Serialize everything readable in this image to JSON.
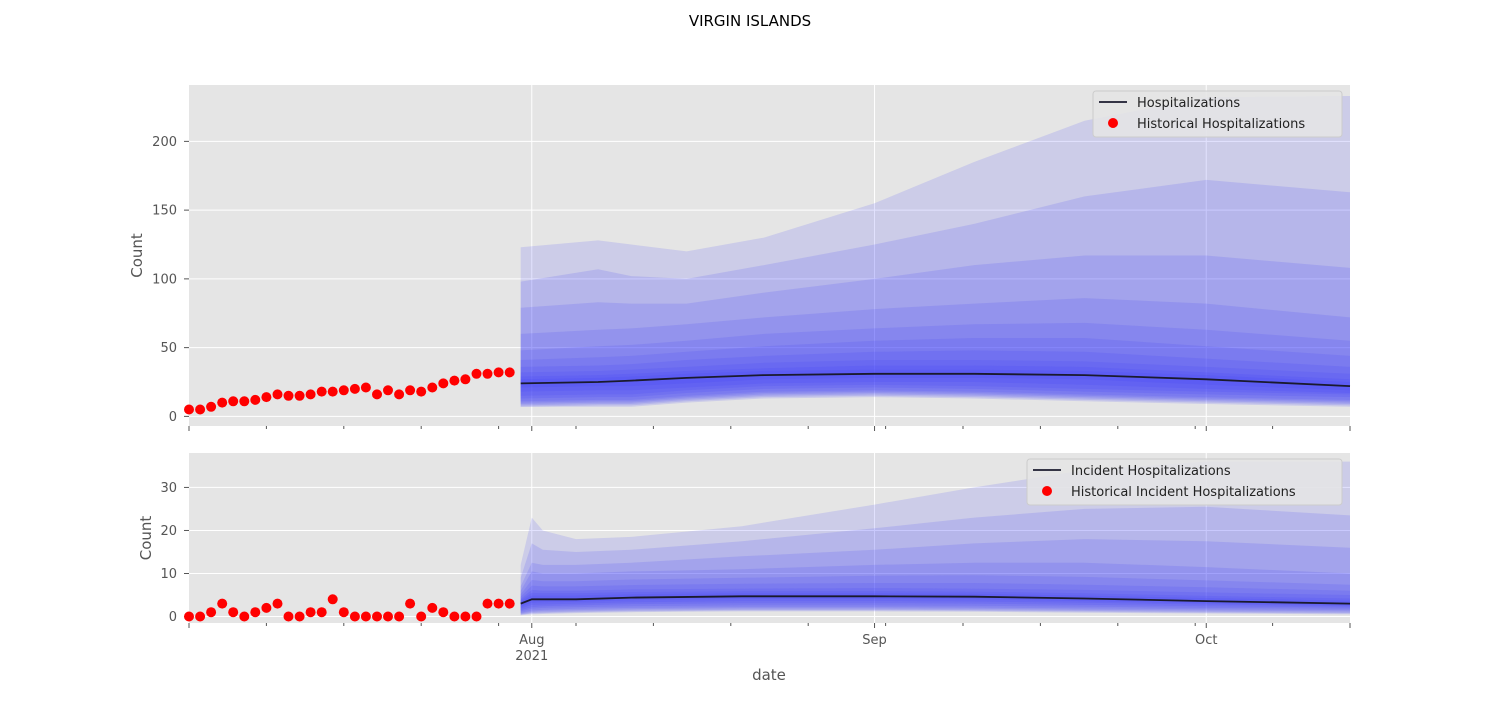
{
  "figure": {
    "title": "VIRGIN ISLANDS",
    "xlabel": "date"
  },
  "colors": {
    "panel_bg": "#e5e5e5",
    "grid": "#ffffff",
    "band": "#3c3cf5",
    "median": "#1a1a2e",
    "historical": "#ff0000",
    "text": "#555555"
  },
  "chart_data": [
    {
      "type": "line",
      "ylabel": "Count",
      "xlim": [
        "2021-07-01",
        "2021-10-14"
      ],
      "ylim": [
        -7,
        241
      ],
      "yticks": [
        0,
        50,
        100,
        150,
        200
      ],
      "xticks": [
        {
          "date": "2021-08-01",
          "label": "Aug",
          "sublabel": "2021"
        },
        {
          "date": "2021-09-01",
          "label": "Sep",
          "sublabel": ""
        },
        {
          "date": "2021-10-01",
          "label": "Oct",
          "sublabel": ""
        }
      ],
      "legend": {
        "placement": "upper right",
        "entries": [
          "Hospitalizations",
          "Historical Hospitalizations"
        ]
      },
      "historical": {
        "name": "Historical Hospitalizations",
        "start": "2021-07-01",
        "values": [
          5,
          5,
          7,
          10,
          11,
          11,
          12,
          14,
          16,
          15,
          15,
          16,
          18,
          18,
          19,
          20,
          21,
          16,
          19,
          16,
          19,
          18,
          21,
          24,
          26,
          27,
          31,
          31,
          32,
          32
        ]
      },
      "forecast": {
        "name": "Hospitalizations",
        "knot_dates": [
          "2021-07-31",
          "2021-08-07",
          "2021-08-10",
          "2021-08-15",
          "2021-08-22",
          "2021-09-01",
          "2021-09-10",
          "2021-09-20",
          "2021-10-01",
          "2021-10-14"
        ],
        "median": [
          24,
          25,
          26,
          28,
          30,
          31,
          31,
          30,
          27,
          22
        ],
        "bands": [
          {
            "lower": [
              7,
              7,
              7,
              10,
              13,
              14,
              13,
              11,
              9,
              7
            ],
            "upper": [
              123,
              128,
              125,
              120,
              130,
              155,
              185,
              215,
              232,
              233
            ]
          },
          {
            "lower": [
              7,
              8,
              8,
              11,
              14,
              15,
              14,
              12,
              10,
              8
            ],
            "upper": [
              98,
              107,
              102,
              100,
              110,
              125,
              140,
              160,
              172,
              163
            ]
          },
          {
            "lower": [
              8,
              9,
              9,
              12,
              15,
              16,
              15,
              13,
              11,
              9
            ],
            "upper": [
              79,
              83,
              82,
              82,
              90,
              100,
              110,
              117,
              117,
              108
            ]
          },
          {
            "lower": [
              9,
              10,
              10,
              13,
              16,
              17,
              16,
              14,
              12,
              10
            ],
            "upper": [
              60,
              63,
              64,
              67,
              72,
              78,
              82,
              86,
              82,
              72
            ]
          },
          {
            "lower": [
              10,
              11,
              11,
              14,
              17,
              18,
              17,
              15,
              13,
              11
            ],
            "upper": [
              48,
              51,
              52,
              55,
              60,
              64,
              67,
              68,
              63,
              55
            ]
          },
          {
            "lower": [
              11,
              12,
              12,
              15,
              18,
              19,
              18,
              16,
              14,
              12
            ],
            "upper": [
              41,
              43,
              44,
              47,
              51,
              55,
              57,
              57,
              51,
              44
            ]
          },
          {
            "lower": [
              13,
              14,
              14,
              17,
              20,
              21,
              20,
              18,
              16,
              14
            ],
            "upper": [
              36,
              37,
              38,
              41,
              44,
              47,
              48,
              47,
              42,
              36
            ]
          },
          {
            "lower": [
              15,
              16,
              16,
              19,
              22,
              23,
              22,
              20,
              18,
              16
            ],
            "upper": [
              32,
              33,
              34,
              36,
              39,
              41,
              41,
              40,
              36,
              31
            ]
          },
          {
            "lower": [
              18,
              19,
              19,
              21,
              24,
              25,
              25,
              23,
              20,
              17
            ],
            "upper": [
              29,
              30,
              31,
              33,
              35,
              37,
              37,
              36,
              32,
              27
            ]
          },
          {
            "lower": [
              21,
              22,
              22,
              24,
              27,
              28,
              28,
              27,
              23,
              19
            ],
            "upper": [
              27,
              28,
              29,
              31,
              33,
              34,
              34,
              33,
              30,
              25
            ]
          }
        ]
      }
    },
    {
      "type": "line",
      "ylabel": "Count",
      "xlim": [
        "2021-07-01",
        "2021-10-14"
      ],
      "ylim": [
        -1.5,
        38
      ],
      "yticks": [
        0,
        10,
        20,
        30
      ],
      "xticks": [
        {
          "date": "2021-08-01",
          "label": "Aug",
          "sublabel": "2021"
        },
        {
          "date": "2021-09-01",
          "label": "Sep",
          "sublabel": ""
        },
        {
          "date": "2021-10-01",
          "label": "Oct",
          "sublabel": ""
        }
      ],
      "legend": {
        "placement": "upper right",
        "entries": [
          "Incident Hospitalizations",
          "Historical Incident Hospitalizations"
        ]
      },
      "historical": {
        "name": "Historical Incident Hospitalizations",
        "start": "2021-07-01",
        "values": [
          0,
          0,
          1,
          3,
          1,
          0,
          1,
          2,
          3,
          0,
          0,
          1,
          1,
          4,
          1,
          0,
          0,
          0,
          0,
          0,
          3,
          0,
          2,
          1,
          0,
          0,
          0,
          3,
          3,
          3
        ]
      },
      "forecast": {
        "name": "Incident Hospitalizations",
        "knot_dates": [
          "2021-07-31",
          "2021-08-01",
          "2021-08-02",
          "2021-08-05",
          "2021-08-10",
          "2021-08-20",
          "2021-09-01",
          "2021-09-10",
          "2021-09-20",
          "2021-10-01",
          "2021-10-14"
        ],
        "median": [
          3,
          4,
          4,
          4,
          4.4,
          4.7,
          4.7,
          4.6,
          4.2,
          3.6,
          3
        ],
        "bands": [
          {
            "lower": [
              0.3,
              0.5,
              0.6,
              0.8,
              1.0,
              1.2,
              1.2,
              1.1,
              0.9,
              0.7,
              0.5
            ],
            "upper": [
              12,
              23,
              20,
              18,
              18.5,
              21,
              26,
              30,
              34,
              36,
              36
            ]
          },
          {
            "lower": [
              0.4,
              0.7,
              0.8,
              1.0,
              1.2,
              1.4,
              1.4,
              1.3,
              1.1,
              0.9,
              0.7
            ],
            "upper": [
              9,
              17,
              15.5,
              15,
              15.5,
              17.5,
              20.5,
              23,
              25,
              25.5,
              23.5
            ]
          },
          {
            "lower": [
              0.5,
              0.9,
              1.0,
              1.2,
              1.4,
              1.6,
              1.6,
              1.5,
              1.3,
              1.1,
              0.9
            ],
            "upper": [
              7,
              12.5,
              12,
              12,
              12.5,
              14,
              15.5,
              17,
              18,
              17.5,
              16
            ]
          },
          {
            "lower": [
              0.7,
              1.1,
              1.3,
              1.5,
              1.7,
              1.9,
              1.9,
              1.8,
              1.6,
              1.4,
              1.2
            ],
            "upper": [
              6,
              10.5,
              10,
              10,
              10.5,
              11,
              12,
              12.5,
              12.5,
              11.5,
              10
            ]
          },
          {
            "lower": [
              0.9,
              1.4,
              1.6,
              1.8,
              2.0,
              2.2,
              2.2,
              2.1,
              1.9,
              1.7,
              1.5
            ],
            "upper": [
              5.2,
              8.5,
              8.2,
              8.2,
              8.6,
              9.0,
              9.5,
              9.6,
              9.2,
              8.4,
              7.4
            ]
          },
          {
            "lower": [
              1.2,
              1.8,
              2.0,
              2.2,
              2.4,
              2.6,
              2.6,
              2.5,
              2.3,
              2.0,
              1.8
            ],
            "upper": [
              4.6,
              7.2,
              7.0,
              7.0,
              7.3,
              7.6,
              7.8,
              7.8,
              7.4,
              6.8,
              6.0
            ]
          },
          {
            "lower": [
              1.5,
              2.2,
              2.4,
              2.6,
              2.9,
              3.1,
              3.1,
              3.0,
              2.7,
              2.4,
              2.1
            ],
            "upper": [
              4.1,
              6.2,
              6.0,
              6.0,
              6.3,
              6.5,
              6.6,
              6.5,
              6.2,
              5.6,
              5.0
            ]
          },
          {
            "lower": [
              1.9,
              2.7,
              2.8,
              3.0,
              3.3,
              3.6,
              3.6,
              3.5,
              3.2,
              2.8,
              2.4
            ],
            "upper": [
              3.8,
              5.5,
              5.4,
              5.4,
              5.7,
              5.9,
              5.9,
              5.8,
              5.4,
              4.8,
              4.2
            ]
          },
          {
            "lower": [
              2.3,
              3.2,
              3.3,
              3.4,
              3.8,
              4.1,
              4.1,
              4.0,
              3.6,
              3.1,
              2.6
            ],
            "upper": [
              3.5,
              4.9,
              4.9,
              4.9,
              5.2,
              5.4,
              5.4,
              5.3,
              4.9,
              4.3,
              3.7
            ]
          }
        ]
      }
    }
  ]
}
